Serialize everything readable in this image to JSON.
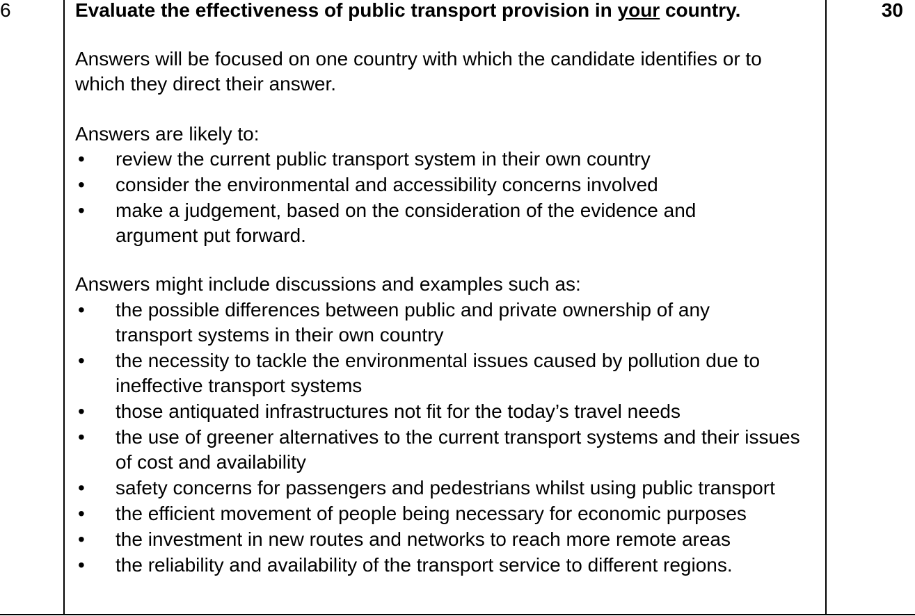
{
  "question": {
    "number": "6",
    "marks": "30",
    "heading_before": "Evaluate the effectiveness of public transport provision in ",
    "heading_underlined": "your",
    "heading_after": " country."
  },
  "intro": "Answers will be focused on one country with which the candidate identifies or to which they direct their answer.",
  "likely": {
    "lead": "Answers are likely to:",
    "items": [
      "review the current public transport system in their own country",
      "consider the environmental and accessibility concerns involved",
      "make a judgement, based on the consideration of the evidence and argument put forward."
    ]
  },
  "might": {
    "lead": "Answers might include discussions and examples such as:",
    "items": [
      "the possible differences between public and private ownership of any transport systems in their own country",
      "the necessity to tackle the environmental issues caused by pollution due to ineffective transport systems",
      "those antiquated infrastructures not fit for the today’s travel needs",
      "the use of greener alternatives to the current transport systems and their issues of cost and availability",
      "safety concerns for passengers and pedestrians whilst using public transport",
      "the efficient movement of people being necessary for economic purposes",
      "the investment in new routes and networks to reach more remote areas",
      "the reliability and availability of the transport service to different regions."
    ]
  },
  "bullet_glyph": "•"
}
